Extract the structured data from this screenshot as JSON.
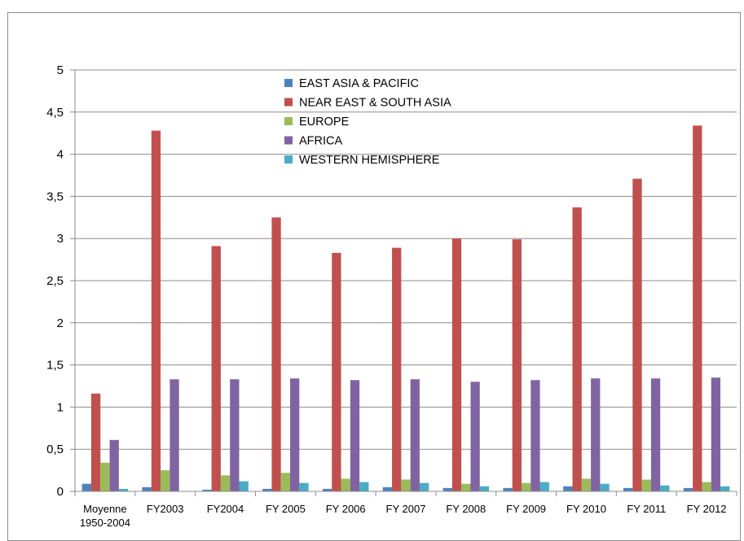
{
  "chart_data": {
    "type": "bar",
    "title": "",
    "xlabel": "",
    "ylabel": "",
    "ylim": [
      0,
      5
    ],
    "yticks": [
      "0",
      "0,5",
      "1",
      "1,5",
      "2",
      "2,5",
      "3",
      "3,5",
      "4",
      "4,5",
      "5"
    ],
    "grid": true,
    "legend_position": "top-center",
    "categories": [
      [
        "Moyenne",
        "1950-2004"
      ],
      [
        "FY2003"
      ],
      [
        "FY2004"
      ],
      [
        "FY 2005"
      ],
      [
        "FY 2006"
      ],
      [
        "FY 2007"
      ],
      [
        "FY 2008"
      ],
      [
        "FY 2009"
      ],
      [
        "FY 2010"
      ],
      [
        "FY 2011"
      ],
      [
        "FY 2012"
      ]
    ],
    "series": [
      {
        "name": "EAST ASIA & PACIFIC",
        "color": "#4f81bd",
        "values": [
          0.09,
          0.05,
          0.02,
          0.03,
          0.03,
          0.05,
          0.04,
          0.04,
          0.06,
          0.04,
          0.04
        ]
      },
      {
        "name": "NEAR EAST & SOUTH ASIA",
        "color": "#c0504d",
        "values": [
          1.16,
          4.28,
          2.91,
          3.25,
          2.83,
          2.89,
          3.0,
          2.99,
          3.37,
          3.71,
          4.34
        ]
      },
      {
        "name": "EUROPE",
        "color": "#9bbb59",
        "values": [
          0.34,
          0.25,
          0.19,
          0.22,
          0.15,
          0.14,
          0.09,
          0.1,
          0.15,
          0.14,
          0.11
        ]
      },
      {
        "name": "AFRICA",
        "color": "#8064a2",
        "values": [
          0.61,
          1.33,
          1.33,
          1.34,
          1.32,
          1.33,
          1.3,
          1.32,
          1.34,
          1.34,
          1.35
        ]
      },
      {
        "name": "WESTERN HEMISPHERE",
        "color": "#4bacc6",
        "values": [
          0.03,
          0.0,
          0.12,
          0.1,
          0.11,
          0.1,
          0.06,
          0.11,
          0.09,
          0.07,
          0.06
        ]
      }
    ]
  }
}
